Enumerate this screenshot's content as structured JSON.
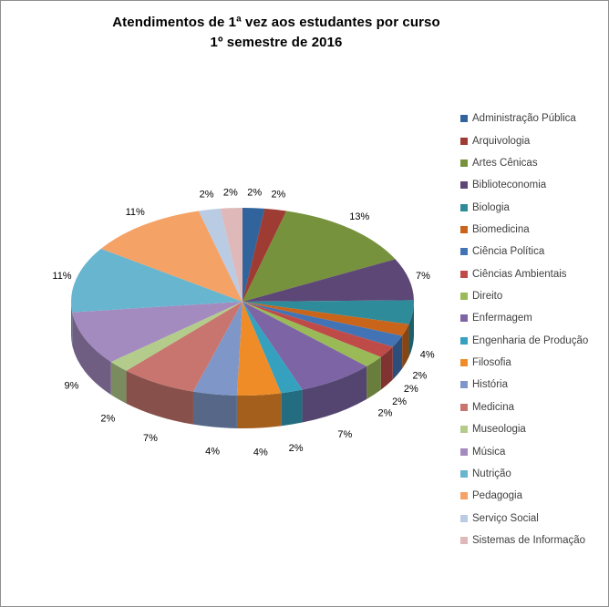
{
  "title": {
    "line1": "Atendimentos de 1ª vez aos estudantes por curso",
    "line2": "1º semestre de 2016"
  },
  "chart_data": {
    "type": "pie",
    "is_3d": true,
    "title": "Atendimentos de 1ª vez aos estudantes por curso — 1º semestre de 2016",
    "legend_position": "right",
    "start_angle_deg": 0,
    "direction": "clockwise",
    "categories": [
      "Administração Pública",
      "Arquivologia",
      "Artes Cênicas",
      "Biblioteconomia",
      "Biologia",
      "Biomedicina",
      "Ciência Política",
      "Ciências Ambientais",
      "Direito",
      "Enfermagem",
      "Engenharia de Produção",
      "Filosofia",
      "História",
      "Medicina",
      "Museologia",
      "Música",
      "Nutrição",
      "Pedagogia",
      "Serviço Social",
      "Sistemas de Informação"
    ],
    "values": [
      2,
      2,
      13,
      7,
      4,
      2,
      2,
      2,
      2,
      7,
      2,
      4,
      4,
      7,
      2,
      9,
      11,
      11,
      2,
      2
    ],
    "labels": [
      "2%",
      "2%",
      "13%",
      "7%",
      "4%",
      "2%",
      "2%",
      "2%",
      "2%",
      "7%",
      "2%",
      "4%",
      "4%",
      "7%",
      "2%",
      "9%",
      "11%",
      "11%",
      "2%",
      "2%"
    ],
    "colors": [
      "#31639C",
      "#9E3B33",
      "#76923C",
      "#5D4776",
      "#2E8B9A",
      "#C8651B",
      "#4273B4",
      "#BE4B48",
      "#9ABA58",
      "#7C64A5",
      "#35A1BE",
      "#EF8C28",
      "#7E97C8",
      "#C8756F",
      "#B3CC8B",
      "#A38ABF",
      "#68B5D0",
      "#F4A266",
      "#BACBE4",
      "#DFB8B9"
    ]
  }
}
